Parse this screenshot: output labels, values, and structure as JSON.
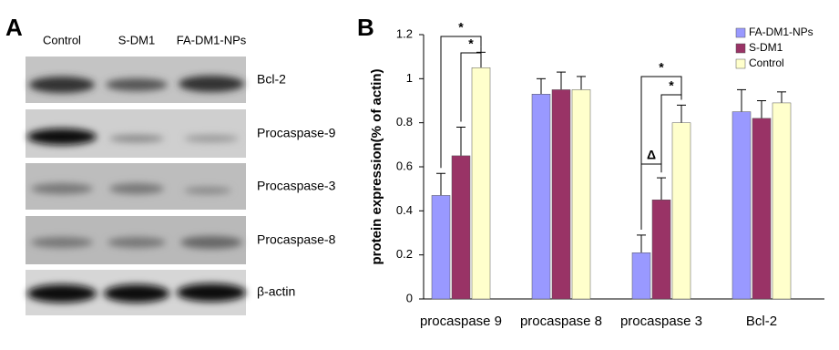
{
  "panel_a": {
    "label": "A",
    "lanes": [
      "Control",
      "S-DM1",
      "FA-DM1-NPs"
    ],
    "rows": [
      "Bcl-2",
      "Procaspase-9",
      "Procaspase-3",
      "Procaspase-8",
      "β-actin"
    ]
  },
  "chart_data": {
    "type": "bar",
    "panel_label": "B",
    "y_label": "protein expression(% of actin)",
    "categories": [
      "procaspase 9",
      "procaspase 8",
      "procaspase 3",
      "Bcl-2"
    ],
    "series": [
      {
        "name": "FA-DM1-NPs",
        "color": "#9999ff",
        "values": [
          0.47,
          0.93,
          0.21,
          0.85
        ],
        "errors": [
          0.1,
          0.07,
          0.08,
          0.1
        ]
      },
      {
        "name": "S-DM1",
        "color": "#993366",
        "values": [
          0.65,
          0.95,
          0.45,
          0.82
        ],
        "errors": [
          0.13,
          0.08,
          0.1,
          0.08
        ]
      },
      {
        "name": "Control",
        "color": "#ffffcc",
        "values": [
          1.05,
          0.95,
          0.8,
          0.89
        ],
        "errors": [
          0.07,
          0.06,
          0.08,
          0.05
        ]
      }
    ],
    "ylim": [
      0,
      1.2
    ],
    "yticks": [
      0,
      0.2,
      0.4,
      0.6,
      0.8,
      1,
      1.2
    ],
    "annotations": [
      "*",
      "*",
      "*",
      "*",
      "Δ"
    ]
  }
}
